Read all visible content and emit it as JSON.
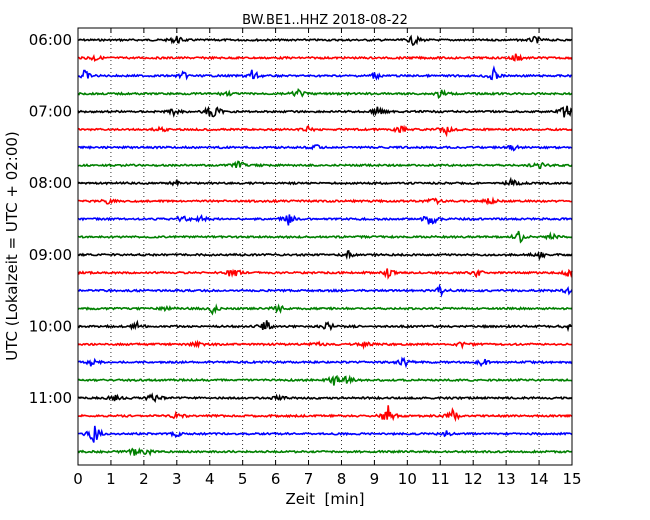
{
  "chart_data": {
    "type": "line",
    "title": "BW.BE1..HHZ 2018-08-22",
    "xlabel": "Zeit  [min]",
    "ylabel": "UTC (Lokalzeit = UTC + 02:00)",
    "xlim": [
      0,
      15
    ],
    "x_ticks": [
      "0",
      "1",
      "2",
      "3",
      "4",
      "5",
      "6",
      "7",
      "8",
      "9",
      "10",
      "11",
      "12",
      "13",
      "14",
      "15"
    ],
    "y_tick_labels": [
      "06:00",
      "07:00",
      "08:00",
      "09:00",
      "10:00",
      "11:00"
    ],
    "trace_interval_min": 15,
    "grid": "vertical dotted at every minute",
    "colors": [
      "#000000",
      "#ff0000",
      "#0000ff",
      "#008000"
    ],
    "traces": [
      {
        "start": "06:00",
        "events": [
          [
            3.0,
            0.5
          ],
          [
            10.2,
            0.6
          ],
          [
            13.9,
            0.4
          ]
        ]
      },
      {
        "start": "06:15",
        "events": [
          [
            0.5,
            0.4
          ],
          [
            13.3,
            0.6
          ]
        ]
      },
      {
        "start": "06:30",
        "events": [
          [
            0.2,
            0.7
          ],
          [
            3.2,
            0.4
          ],
          [
            5.3,
            0.8
          ],
          [
            9.0,
            0.4
          ],
          [
            12.6,
            1.0
          ]
        ]
      },
      {
        "start": "06:45",
        "events": [
          [
            4.5,
            0.3
          ],
          [
            6.7,
            0.5
          ],
          [
            11.0,
            0.6
          ]
        ]
      },
      {
        "start": "07:00",
        "events": [
          [
            2.9,
            0.4
          ],
          [
            4.1,
            1.3
          ],
          [
            9.1,
            0.6
          ],
          [
            14.8,
            1.0
          ]
        ]
      },
      {
        "start": "07:15",
        "events": [
          [
            2.5,
            0.4
          ],
          [
            7.0,
            0.3
          ],
          [
            9.8,
            0.5
          ],
          [
            11.2,
            0.6
          ]
        ]
      },
      {
        "start": "07:30",
        "events": [
          [
            7.2,
            0.3
          ],
          [
            13.2,
            0.3
          ]
        ]
      },
      {
        "start": "07:45",
        "events": [
          [
            4.9,
            0.5
          ],
          [
            14.0,
            0.5
          ]
        ]
      },
      {
        "start": "08:00",
        "events": [
          [
            13.2,
            0.6
          ],
          [
            3.0,
            0.3
          ]
        ]
      },
      {
        "start": "08:15",
        "events": [
          [
            0.9,
            0.3
          ],
          [
            10.8,
            0.5
          ],
          [
            12.5,
            0.4
          ]
        ]
      },
      {
        "start": "08:30",
        "events": [
          [
            3.2,
            0.6
          ],
          [
            3.8,
            0.5
          ],
          [
            6.4,
            0.8
          ],
          [
            10.7,
            1.0
          ]
        ]
      },
      {
        "start": "08:45",
        "events": [
          [
            13.4,
            0.7
          ],
          [
            14.4,
            0.4
          ]
        ]
      },
      {
        "start": "09:00",
        "events": [
          [
            8.2,
            0.4
          ],
          [
            14.0,
            0.5
          ]
        ]
      },
      {
        "start": "09:15",
        "events": [
          [
            4.7,
            0.9
          ],
          [
            9.4,
            0.6
          ],
          [
            12.1,
            0.5
          ],
          [
            14.9,
            0.4
          ]
        ]
      },
      {
        "start": "09:30",
        "events": [
          [
            11.0,
            0.6
          ],
          [
            14.9,
            0.5
          ]
        ]
      },
      {
        "start": "09:45",
        "events": [
          [
            2.7,
            0.3
          ],
          [
            4.1,
            0.6
          ],
          [
            6.1,
            0.4
          ]
        ]
      },
      {
        "start": "10:00",
        "events": [
          [
            1.8,
            0.5
          ],
          [
            5.7,
            0.8
          ],
          [
            7.6,
            0.5
          ],
          [
            14.9,
            0.4
          ]
        ]
      },
      {
        "start": "10:15",
        "events": [
          [
            3.6,
            0.3
          ],
          [
            7.2,
            0.5
          ],
          [
            8.7,
            0.3
          ],
          [
            11.7,
            0.5
          ]
        ]
      },
      {
        "start": "10:30",
        "events": [
          [
            0.4,
            0.5
          ],
          [
            9.9,
            0.6
          ],
          [
            12.3,
            0.5
          ]
        ]
      },
      {
        "start": "10:45",
        "events": [
          [
            7.8,
            0.7
          ],
          [
            8.2,
            0.5
          ]
        ]
      },
      {
        "start": "11:00",
        "events": [
          [
            1.1,
            0.5
          ],
          [
            2.3,
            0.8
          ],
          [
            6.1,
            0.3
          ]
        ]
      },
      {
        "start": "11:15",
        "events": [
          [
            3.0,
            0.5
          ],
          [
            9.4,
            1.3
          ],
          [
            11.4,
            0.8
          ]
        ]
      },
      {
        "start": "11:30",
        "events": [
          [
            0.5,
            1.2
          ],
          [
            3.0,
            0.3
          ],
          [
            11.2,
            0.3
          ]
        ]
      },
      {
        "start": "11:45",
        "events": [
          [
            1.7,
            0.4
          ],
          [
            2.1,
            0.4
          ]
        ]
      }
    ]
  }
}
